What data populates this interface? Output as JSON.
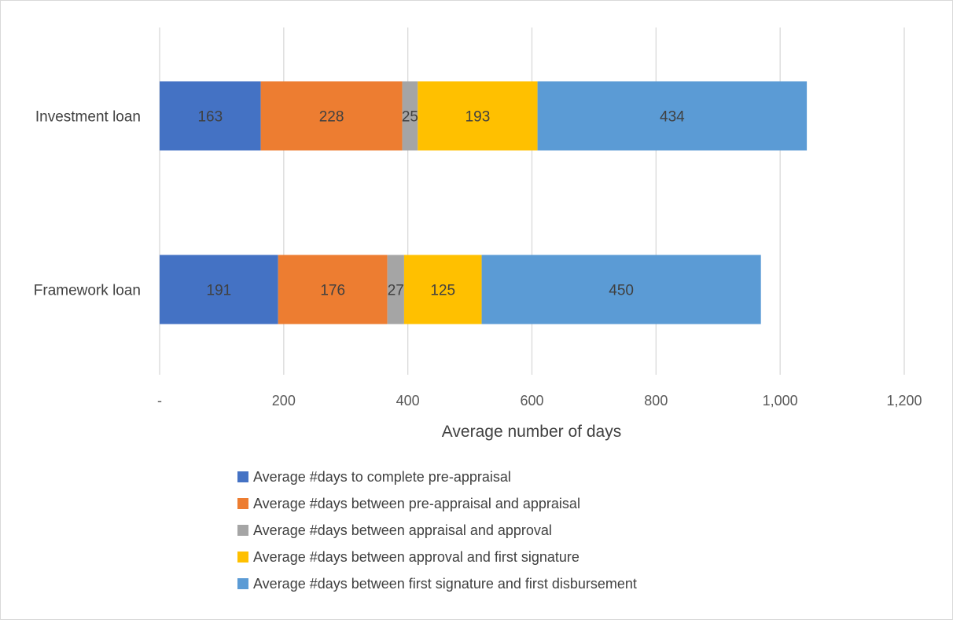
{
  "chart_data": {
    "type": "bar",
    "orientation": "horizontal",
    "stacked": true,
    "categories": [
      "Investment loan",
      "Framework loan"
    ],
    "series": [
      {
        "name": "Average #days to complete pre-appraisal",
        "color": "#4472C4",
        "values": [
          163,
          191
        ]
      },
      {
        "name": "Average #days between pre-appraisal and appraisal",
        "color": "#ED7D31",
        "values": [
          228,
          176
        ]
      },
      {
        "name": "Average #days between appraisal and approval",
        "color": "#A5A5A5",
        "values": [
          25,
          27
        ]
      },
      {
        "name": "Average #days between approval and first signature",
        "color": "#FFC000",
        "values": [
          193,
          125
        ]
      },
      {
        "name": "Average #days between first signature and first disbursement",
        "color": "#5B9BD5",
        "values": [
          434,
          450
        ]
      }
    ],
    "xlabel": "Average number of days",
    "ylabel": "",
    "xlim": [
      0,
      1200
    ],
    "x_ticks": [
      0,
      200,
      400,
      600,
      800,
      1000,
      1200
    ],
    "x_tick_labels": [
      "-",
      "200",
      "400",
      "600",
      "800",
      "1,000",
      "1,200"
    ],
    "grid": true,
    "legend_position": "bottom"
  }
}
